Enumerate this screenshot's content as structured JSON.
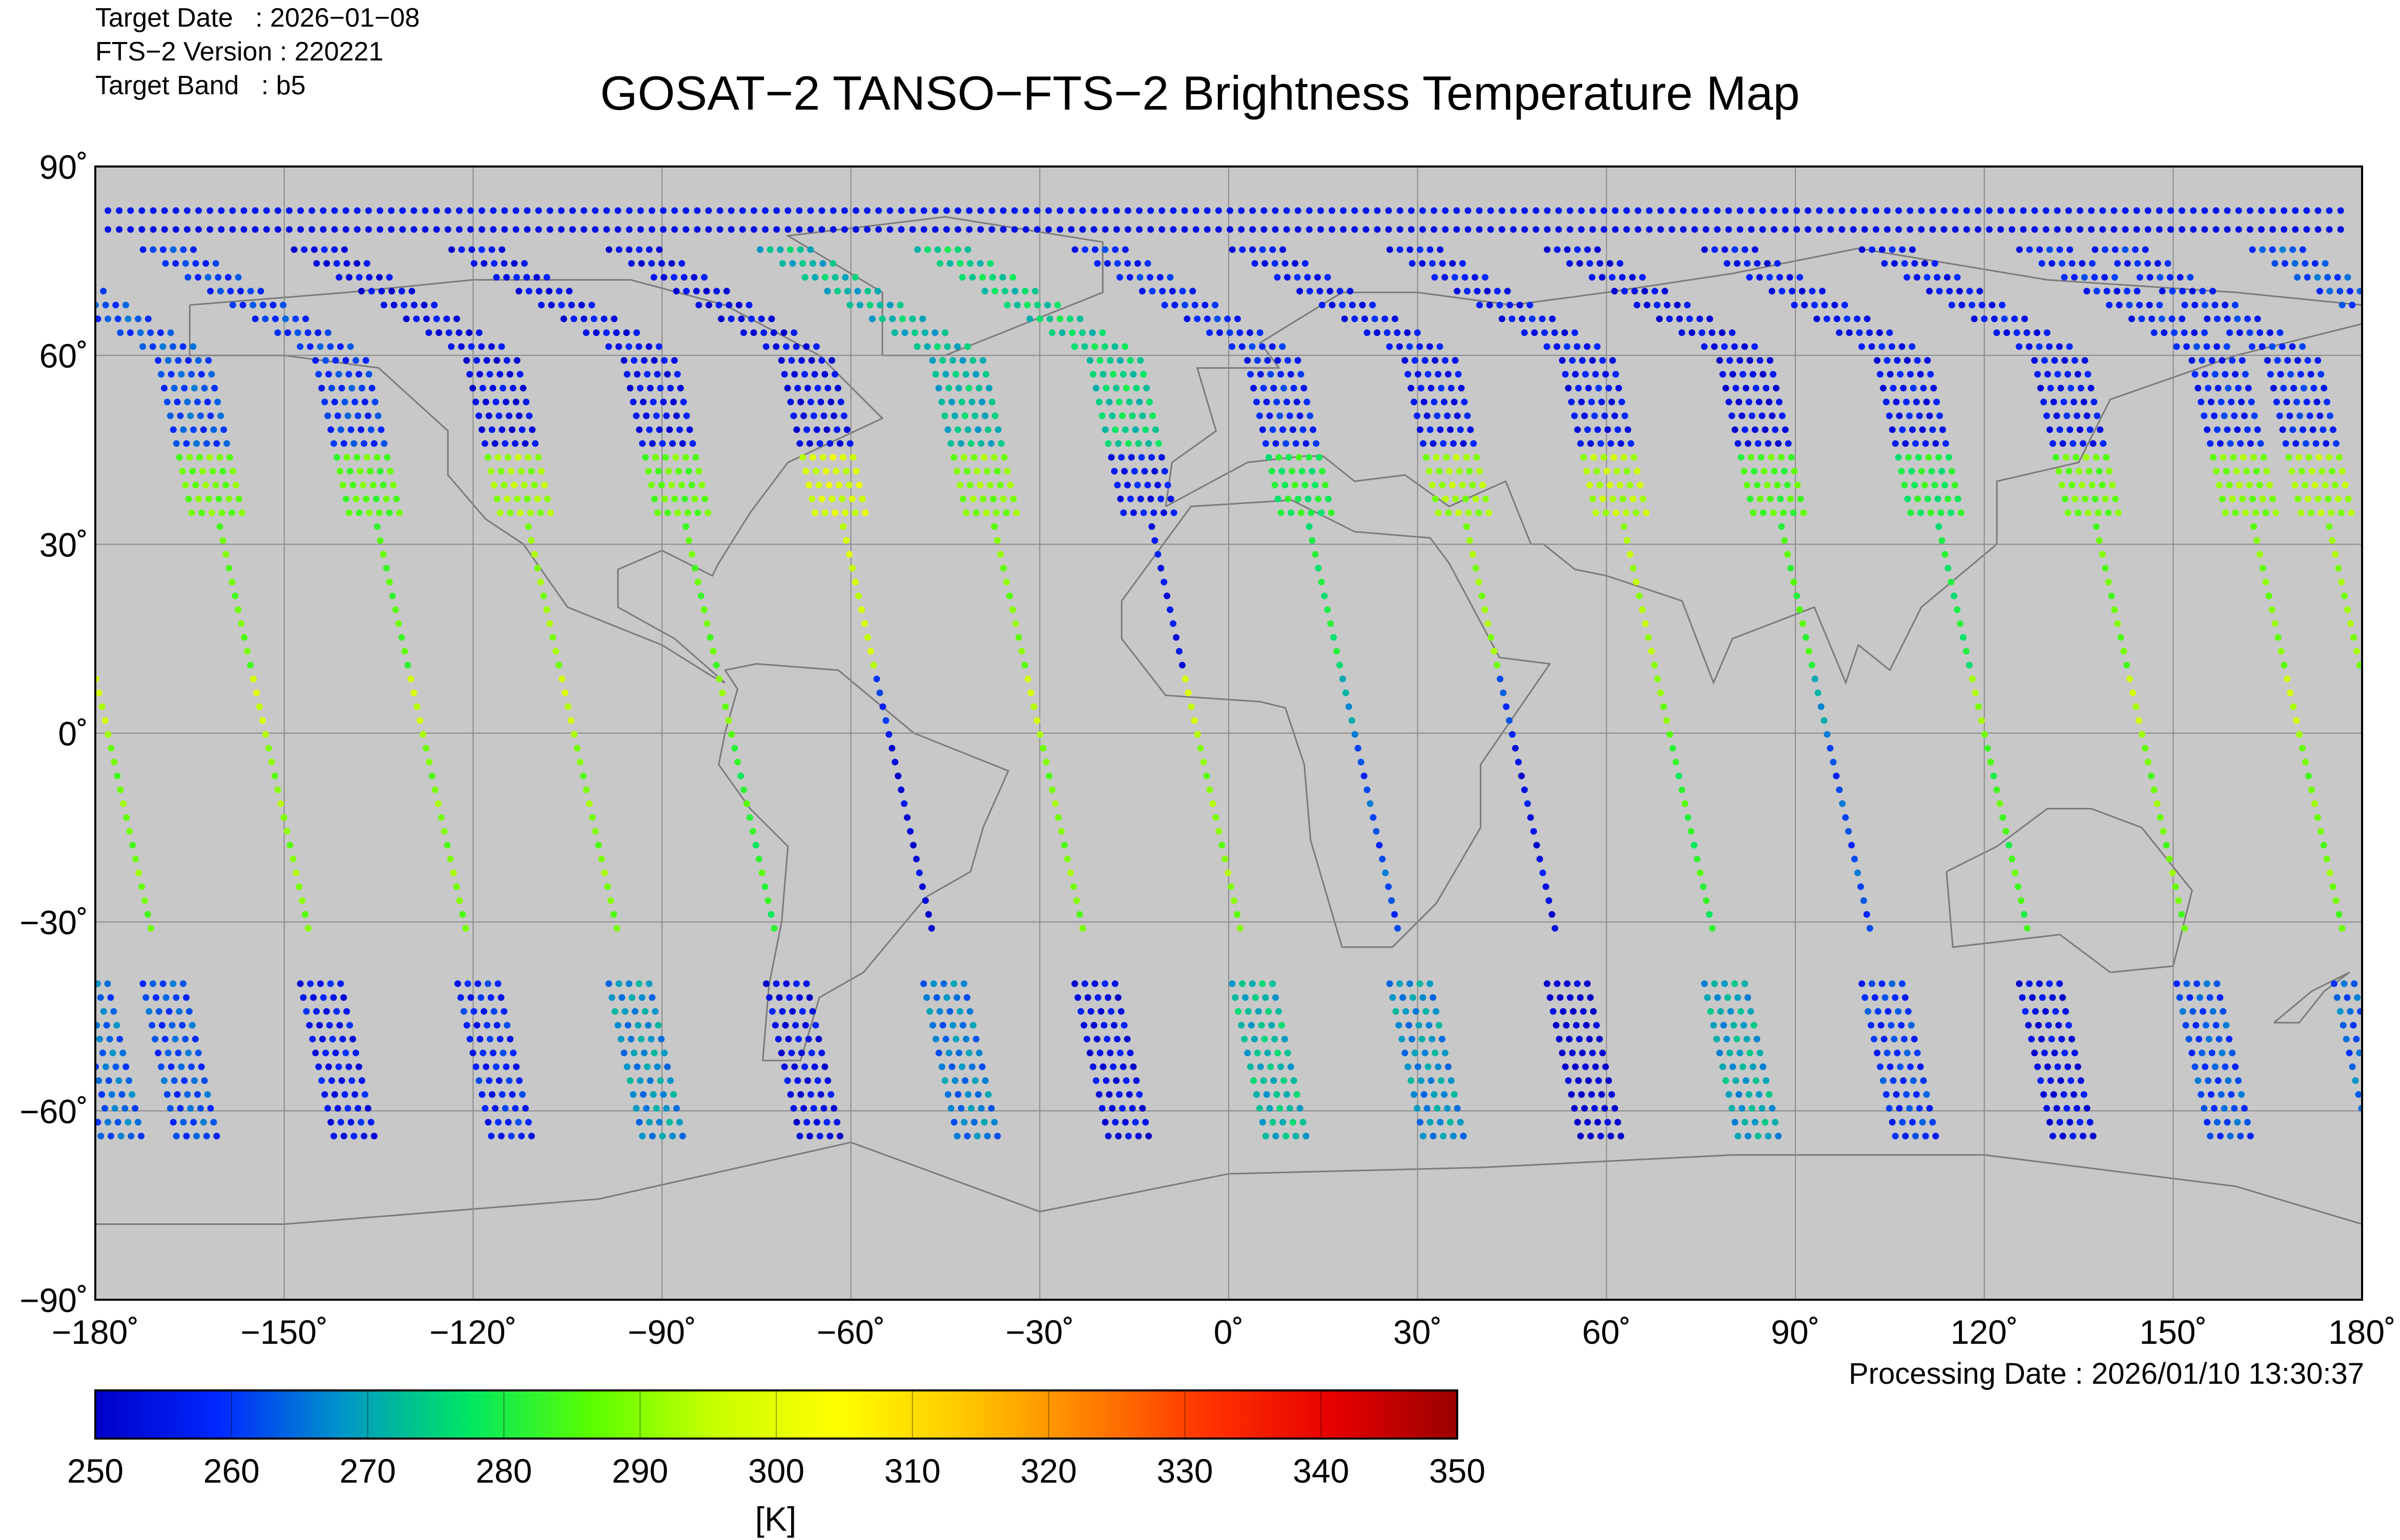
{
  "header": {
    "target_date": "Target Date   : 2026−01−08",
    "fts_version": "FTS−2 Version : 220221",
    "target_band": "Target Band   : b5",
    "title": "GOSAT−2 TANSO−FTS−2 Brightness Temperature Map",
    "processing_date": "Processing Date : 2026/01/10 13:30:37"
  },
  "colorbar": {
    "unit": "[K]",
    "ticks": [
      "250",
      "260",
      "270",
      "280",
      "290",
      "300",
      "310",
      "320",
      "330",
      "340",
      "350"
    ],
    "range": [
      250,
      350
    ],
    "stops": [
      "#0000c8",
      "#0028ff",
      "#0096c8",
      "#00e664",
      "#5aff00",
      "#c8ff00",
      "#ffff00",
      "#ffc800",
      "#ff8200",
      "#ff3200",
      "#e60000",
      "#9b0000"
    ]
  },
  "chart_data": {
    "type": "scatter",
    "title": "GOSAT−2 TANSO−FTS−2 Brightness Temperature Map",
    "xlabel": "",
    "ylabel": "",
    "xlim": [
      -180,
      180
    ],
    "ylim": [
      -90,
      90
    ],
    "x_ticks": [
      "−180˚",
      "−150˚",
      "−120˚",
      "−90˚",
      "−60˚",
      "−30˚",
      "0˚",
      "30˚",
      "60˚",
      "90˚",
      "120˚",
      "150˚",
      "180˚"
    ],
    "y_ticks": [
      "90˚",
      "60˚",
      "30˚",
      "0˚",
      "−30˚",
      "−60˚",
      "−90˚"
    ],
    "grid": true,
    "background": "#c8c8c8",
    "colorscale_K": [
      250,
      350
    ],
    "orbit_tracks": [
      {
        "lon0": -178,
        "temps": {
          "north": 258,
          "mid": 292,
          "equator": 296,
          "south": 270
        }
      },
      {
        "lon0": -153,
        "temps": {
          "north": 262,
          "mid": 288,
          "equator": 298,
          "south": 264
        }
      },
      {
        "lon0": -128,
        "temps": {
          "north": 260,
          "mid": 286,
          "equator": 297,
          "south": 266
        }
      },
      {
        "lon0": -104,
        "temps": {
          "north": 254,
          "mid": 292,
          "equator": 297,
          "south": 276
        }
      },
      {
        "lon0": -79,
        "temps": {
          "north": 255,
          "mid": 287,
          "equator": 290,
          "south": 262
        }
      },
      {
        "lon0": -54,
        "temps": {
          "north": 254,
          "mid": 298,
          "equator": 260,
          "south": 274
        }
      },
      {
        "lon0": -30,
        "temps": {
          "north": 272,
          "mid": 290,
          "equator": 297,
          "south": 262
        }
      },
      {
        "lon0": -5,
        "temps": {
          "north": 275,
          "mid": 256,
          "equator": 298,
          "south": 280
        }
      },
      {
        "lon0": 20,
        "temps": {
          "north": 258,
          "mid": 280,
          "equator": 270,
          "south": 276
        }
      },
      {
        "lon0": 45,
        "temps": {
          "north": 256,
          "mid": 292,
          "equator": 262,
          "south": 258
        }
      },
      {
        "lon0": 70,
        "temps": {
          "north": 256,
          "mid": 294,
          "equator": 290,
          "south": 278
        }
      },
      {
        "lon0": 95,
        "temps": {
          "north": 254,
          "mid": 285,
          "equator": 270,
          "south": 268
        }
      },
      {
        "lon0": 120,
        "temps": {
          "north": 256,
          "mid": 280,
          "equator": 292,
          "south": 262
        }
      },
      {
        "lon0": 145,
        "temps": {
          "north": 256,
          "mid": 288,
          "equator": 296,
          "south": 270
        }
      },
      {
        "lon0": 170,
        "temps": {
          "north": 258,
          "mid": 290,
          "equator": 296,
          "south": 272
        }
      }
    ],
    "polar_band": {
      "lat_range": [
        80,
        84
      ],
      "temp": 254
    }
  }
}
